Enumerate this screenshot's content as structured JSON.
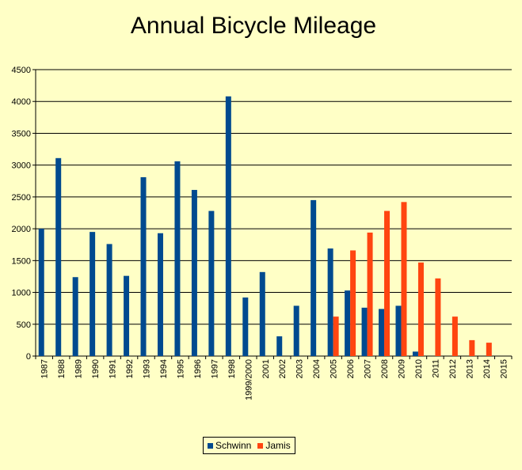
{
  "chart_data": {
    "type": "bar",
    "title": "Annual Bicycle Mileage",
    "xlabel": "",
    "ylabel": "",
    "ylim": [
      0,
      4500
    ],
    "yticks": [
      0,
      500,
      1000,
      1500,
      2000,
      2500,
      3000,
      3500,
      4000,
      4500
    ],
    "grid": true,
    "legend_position": "bottom",
    "categories": [
      "1987",
      "1988",
      "1989",
      "1990",
      "1991",
      "1992",
      "1993",
      "1994",
      "1995",
      "1996",
      "1997",
      "1998",
      "1999/2000",
      "2001",
      "2002",
      "2003",
      "2004",
      "2005",
      "2006",
      "2007",
      "2008",
      "2009",
      "2010",
      "2011",
      "2012",
      "2013",
      "2014",
      "2015"
    ],
    "series": [
      {
        "name": "Schwinn",
        "color": "#004a8f",
        "values": [
          2000,
          3110,
          1240,
          1950,
          1760,
          1260,
          2810,
          1930,
          3060,
          2610,
          2280,
          4080,
          920,
          1320,
          310,
          790,
          2450,
          1690,
          1030,
          760,
          740,
          790,
          70,
          null,
          null,
          null,
          null,
          null
        ]
      },
      {
        "name": "Jamis",
        "color": "#ff4510",
        "values": [
          null,
          null,
          null,
          null,
          null,
          null,
          null,
          null,
          null,
          null,
          null,
          null,
          null,
          null,
          null,
          null,
          null,
          620,
          1660,
          1940,
          2280,
          2420,
          1470,
          1220,
          620,
          250,
          210,
          null
        ]
      }
    ]
  }
}
